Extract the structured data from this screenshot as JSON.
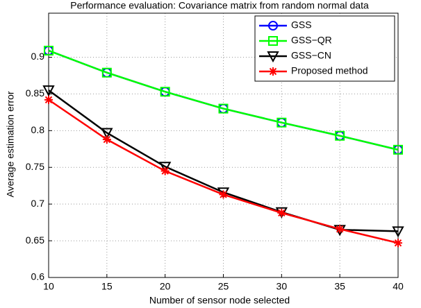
{
  "chart_data": {
    "type": "line",
    "title": "Performance evaluation: Covariance matrix from random normal data",
    "x_label": "Number of sensor node selected",
    "y_label": "Average estimation error",
    "x": [
      10,
      15,
      20,
      25,
      30,
      35,
      40
    ],
    "series": [
      {
        "name": "GSS",
        "color": "#0000ff",
        "marker": "circle",
        "values": [
          0.909,
          0.879,
          0.853,
          0.83,
          0.811,
          0.793,
          0.774
        ]
      },
      {
        "name": "GSS−QR",
        "color": "#00ff00",
        "marker": "square",
        "values": [
          0.909,
          0.879,
          0.853,
          0.83,
          0.811,
          0.793,
          0.774
        ]
      },
      {
        "name": "GSS−CN",
        "color": "#000000",
        "marker": "triangle-down",
        "values": [
          0.855,
          0.797,
          0.751,
          0.716,
          0.689,
          0.665,
          0.663
        ]
      },
      {
        "name": "Proposed method",
        "color": "#ff0000",
        "marker": "star",
        "values": [
          0.842,
          0.788,
          0.745,
          0.713,
          0.688,
          0.666,
          0.647
        ]
      }
    ],
    "xlim": [
      10,
      40
    ],
    "xticks": [
      10,
      15,
      20,
      25,
      30,
      35,
      40
    ],
    "ylim": [
      0.6,
      0.96
    ],
    "yticks": [
      0.6,
      0.65,
      0.7,
      0.75,
      0.8,
      0.85,
      0.9
    ],
    "grid": true,
    "legend": "upper right"
  }
}
